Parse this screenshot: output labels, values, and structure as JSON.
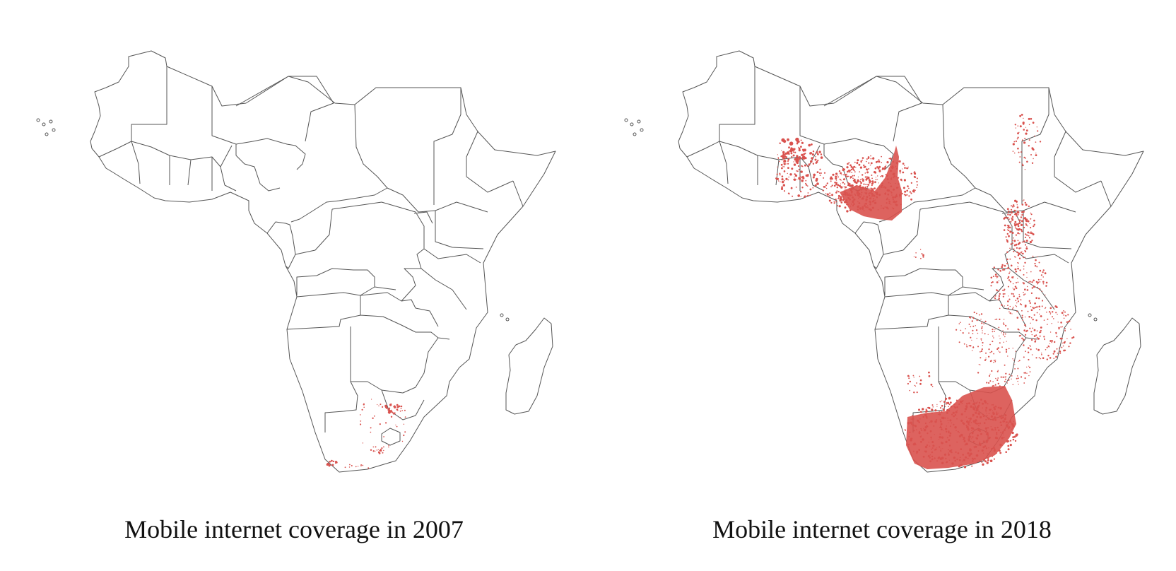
{
  "maps": [
    {
      "caption": "Mobile internet coverage in 2007"
    },
    {
      "caption": "Mobile internet coverage in 2018"
    }
  ],
  "colors": {
    "coverage": "#d9524e",
    "border": "#555555",
    "background": "#ffffff"
  }
}
